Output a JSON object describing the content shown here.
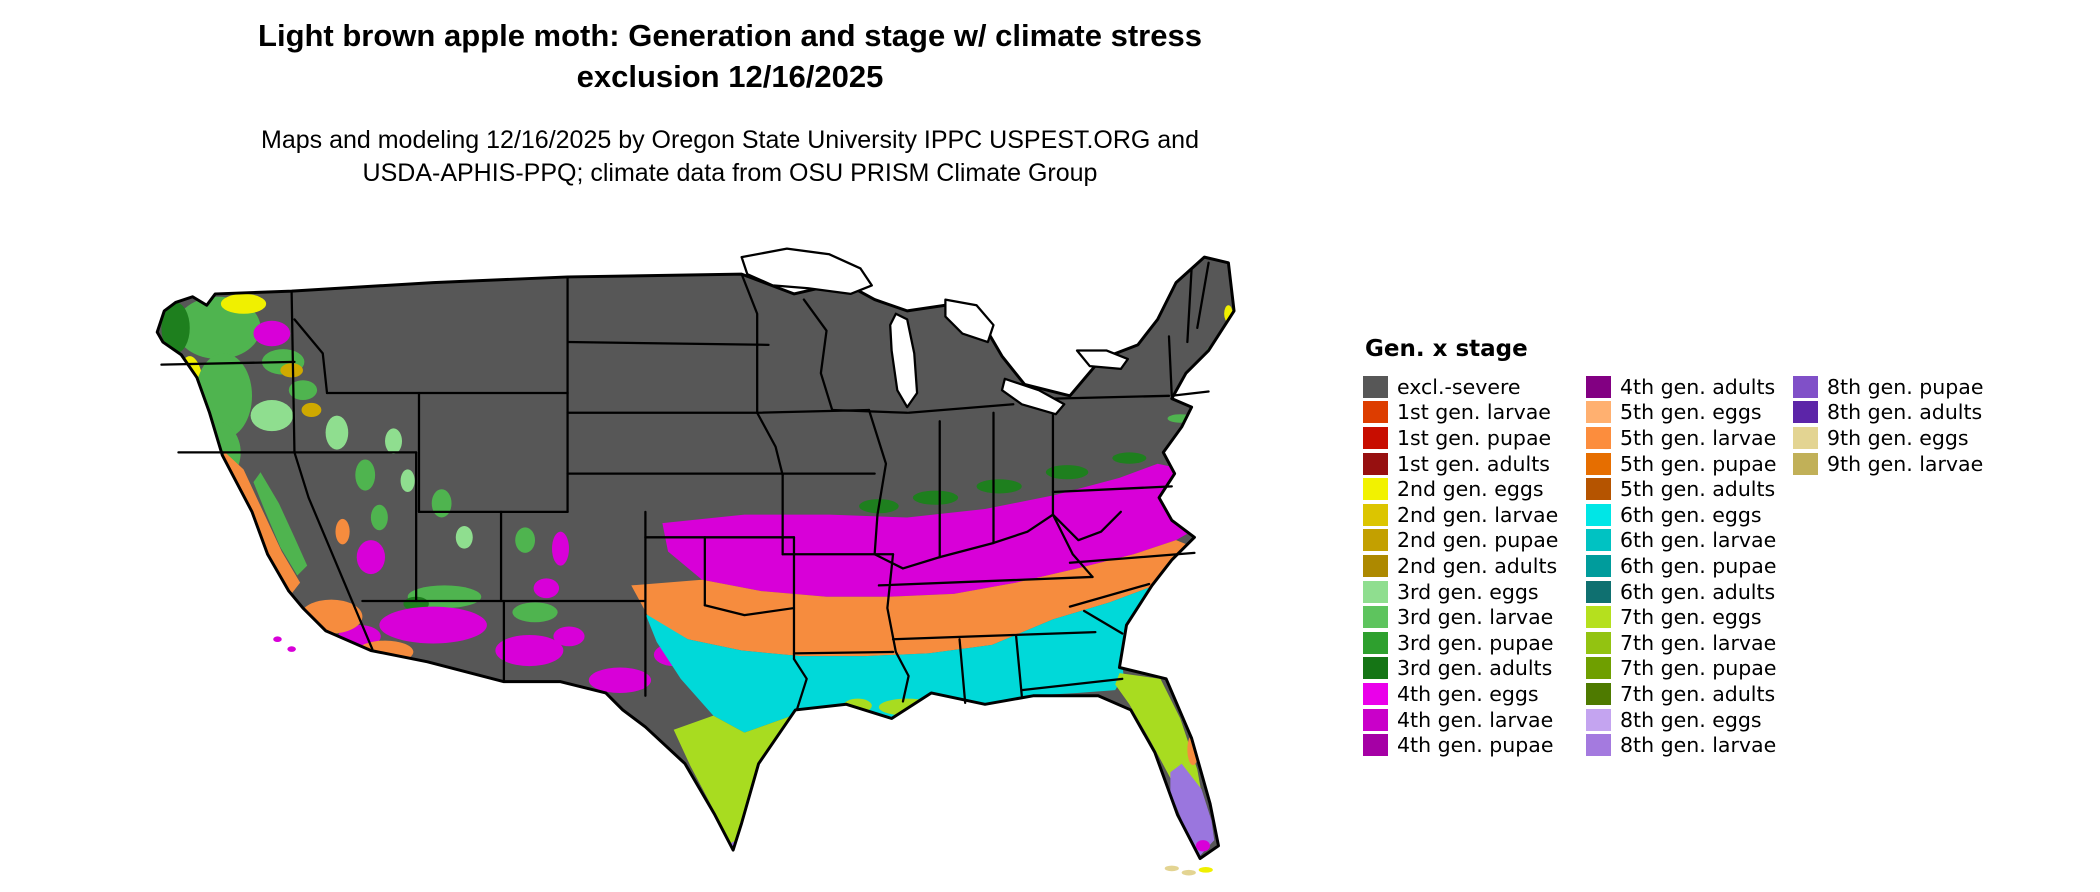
{
  "header": {
    "title_line1": "Light brown apple moth: Generation and stage w/ climate stress",
    "title_line2": "exclusion 12/16/2025",
    "subtitle_line1": "Maps and modeling 12/16/2025 by Oregon State University IPPC USPEST.ORG and",
    "subtitle_line2": "USDA-APHIS-PPQ; climate data from OSU PRISM Climate Group"
  },
  "legend": {
    "title": "Gen. x stage",
    "columns": [
      [
        {
          "label": "excl.-severe",
          "color": "#575757"
        },
        {
          "label": "1st gen. larvae",
          "color": "#DD3D00"
        },
        {
          "label": "1st gen. pupae",
          "color": "#C80D00"
        },
        {
          "label": "1st gen. adults",
          "color": "#971010"
        },
        {
          "label": "2nd gen. eggs",
          "color": "#F2F200"
        },
        {
          "label": "2nd gen. larvae",
          "color": "#DCC500"
        },
        {
          "label": "2nd gen. pupae",
          "color": "#C3A000"
        },
        {
          "label": "2nd gen. adults",
          "color": "#AD8900"
        },
        {
          "label": "3rd gen. eggs",
          "color": "#8FDE8F"
        },
        {
          "label": "3rd gen. larvae",
          "color": "#5EC45E"
        },
        {
          "label": "3rd gen. pupae",
          "color": "#2EA02E"
        },
        {
          "label": "3rd gen. adults",
          "color": "#157515"
        },
        {
          "label": "4th gen. eggs",
          "color": "#EA00EA"
        },
        {
          "label": "4th gen. larvae",
          "color": "#C900C9"
        },
        {
          "label": "4th gen. pupae",
          "color": "#A500A5"
        }
      ],
      [
        {
          "label": "4th gen. adults",
          "color": "#820082"
        },
        {
          "label": "5th gen. eggs",
          "color": "#FFB070"
        },
        {
          "label": "5th gen. larvae",
          "color": "#FC8D3D"
        },
        {
          "label": "5th gen. pupae",
          "color": "#E66E00"
        },
        {
          "label": "5th gen. adults",
          "color": "#B55400"
        },
        {
          "label": "6th gen. eggs",
          "color": "#00E6E6"
        },
        {
          "label": "6th gen. larvae",
          "color": "#00C2C2"
        },
        {
          "label": "6th gen. pupae",
          "color": "#009C9C"
        },
        {
          "label": "6th gen. adults",
          "color": "#0F7070"
        },
        {
          "label": "7th gen. eggs",
          "color": "#B5E01E"
        },
        {
          "label": "7th gen. larvae",
          "color": "#93C311"
        },
        {
          "label": "7th gen. pupae",
          "color": "#6F9F00"
        },
        {
          "label": "7th gen. adults",
          "color": "#4E7A00"
        },
        {
          "label": "8th gen. eggs",
          "color": "#C4A4F0"
        },
        {
          "label": "8th gen. larvae",
          "color": "#A47ADF"
        }
      ],
      [
        {
          "label": "8th gen. pupae",
          "color": "#8050C8"
        },
        {
          "label": "8th gen. adults",
          "color": "#5C25A8"
        },
        {
          "label": "9th gen. eggs",
          "color": "#E3D492"
        },
        {
          "label": "9th gen. larvae",
          "color": "#C1B058"
        }
      ]
    ]
  },
  "map_colors": {
    "excl_severe": "#575757",
    "gen2_yellow": "#F0F000",
    "gen2_gold": "#CFA900",
    "gen3_light_green": "#8FDE8F",
    "gen3_green": "#4FB44F",
    "gen3_dark_green": "#1E7F1E",
    "gen4_magenta": "#D800D8",
    "gen5_orange": "#F68C3E",
    "gen6_cyan": "#00D9D9",
    "gen7_yellow_green": "#A8DC20",
    "gen8_purple": "#9A76DE",
    "gen9_tan": "#E3D492",
    "water": "#FFFFFF",
    "border": "#000000"
  }
}
